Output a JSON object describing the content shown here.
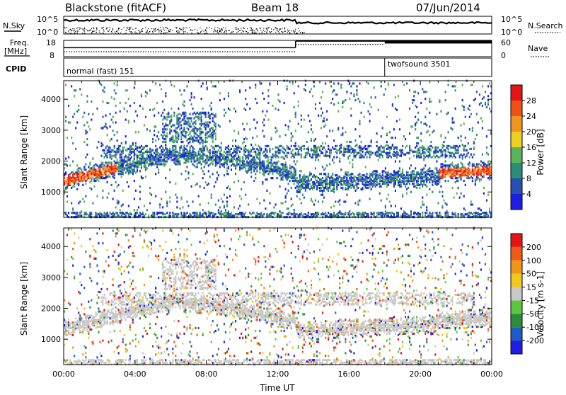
{
  "header": {
    "station": "Blackstone (fitACF)",
    "beam": "Beam 18",
    "date": "07/Jun/2014"
  },
  "summary_panels": {
    "nsky_label": "N.Sky",
    "nsearch_label": "N.Search",
    "nsky_ticks": [
      "10^5",
      "10^0"
    ],
    "nsearch_ticks": [
      "10^5",
      "10^0"
    ],
    "freq_label_line1": "Freq.",
    "freq_label_line2": "[MHz]",
    "freq_ticks": [
      "18",
      "8"
    ],
    "nave_label": "Nave",
    "nave_ticks": [
      "60",
      "0"
    ],
    "cpid_label": "CPID",
    "cpid_modes": [
      {
        "name": "normal (fast) 151",
        "start_hour": 0,
        "end_hour": 18
      },
      {
        "name": "twofsound 3501",
        "start_hour": 18,
        "end_hour": 24
      }
    ],
    "freq_segments": [
      {
        "start_hour": 0,
        "end_hour": 13,
        "level": 0.55
      },
      {
        "start_hour": 13,
        "end_hour": 24,
        "level": 0.95
      }
    ],
    "nave_segments": [
      {
        "start_hour": 0,
        "end_hour": 13,
        "level": 0.3
      },
      {
        "start_hour": 13,
        "end_hour": 18,
        "level": 0.75
      },
      {
        "start_hour": 18,
        "end_hour": 24,
        "level": 0.85
      }
    ]
  },
  "chart_data": [
    {
      "type": "heatmap",
      "quantity": "Power",
      "xlabel": "",
      "ylabel": "Slant Range [km]",
      "colorbar_label": "Power [dB]",
      "colorbar_ticks": [
        "28",
        "24",
        "20",
        "16",
        "12",
        "8",
        "4"
      ],
      "ylim": [
        180,
        4600
      ],
      "y_ticks": [
        "4000",
        "3000",
        "2000",
        "1000"
      ],
      "colors": [
        "#1e1ee6",
        "#2850b4",
        "#2d8c78",
        "#5ab45a",
        "#f0d01e",
        "#f0961e",
        "#f05014",
        "#e61414"
      ]
    },
    {
      "type": "heatmap",
      "quantity": "Velocity",
      "xlabel": "Time UT",
      "ylabel": "Slant Range [km]",
      "colorbar_label": "Velocity [m s-1]",
      "colorbar_ticks": [
        "200",
        "100",
        "50",
        "15",
        "-15",
        "-50",
        "-100",
        "-200"
      ],
      "ylim": [
        180,
        4600
      ],
      "y_ticks": [
        "4000",
        "3000",
        "2000",
        "1000"
      ],
      "x_ticks": [
        "00:00",
        "04:00",
        "08:00",
        "12:00",
        "16:00",
        "20:00",
        "00:00"
      ],
      "colors": [
        "#1e1ee6",
        "#1e5ac8",
        "#2d8c3c",
        "#5ac83c",
        "#c8c8c8",
        "#f0c81e",
        "#f09614",
        "#f05a14",
        "#e61414"
      ]
    }
  ]
}
